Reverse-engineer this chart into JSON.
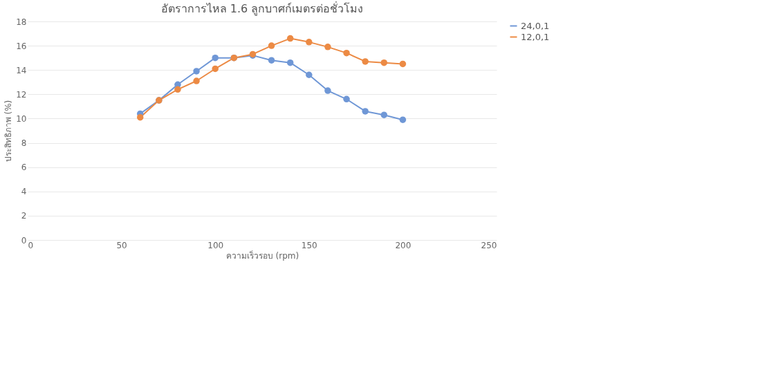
{
  "chart_data": {
    "type": "line",
    "title": "อัตราการไหล 1.6 ลูกบาศก์เมตรต่อชั่วโมง",
    "xlabel": "ความเร็วรอบ (rpm)",
    "ylabel": "ประสิทธิภาพ (%)",
    "x": [
      60,
      70,
      80,
      90,
      100,
      110,
      120,
      130,
      140,
      150,
      160,
      170,
      180,
      190,
      200
    ],
    "series": [
      {
        "name": "24,0,1",
        "color": "#6f97d6",
        "values": [
          10.4,
          11.5,
          12.8,
          13.9,
          15.0,
          15.0,
          15.2,
          14.8,
          14.6,
          13.6,
          12.3,
          11.6,
          10.6,
          10.3,
          9.9
        ]
      },
      {
        "name": "12,0,1",
        "color": "#ec8a44",
        "values": [
          10.1,
          11.5,
          12.4,
          13.1,
          14.1,
          15.0,
          15.3,
          16.0,
          16.6,
          16.3,
          15.9,
          15.4,
          14.7,
          14.6,
          14.5
        ]
      }
    ],
    "xlim": [
      0,
      250
    ],
    "xticks": [
      0,
      50,
      100,
      150,
      200,
      250
    ],
    "ylim": [
      0,
      18
    ],
    "yticks": [
      0,
      2,
      4,
      6,
      8,
      10,
      12,
      14,
      16,
      18
    ],
    "grid": "y",
    "legend": "right",
    "marker": "circle",
    "line_style": "solid"
  }
}
